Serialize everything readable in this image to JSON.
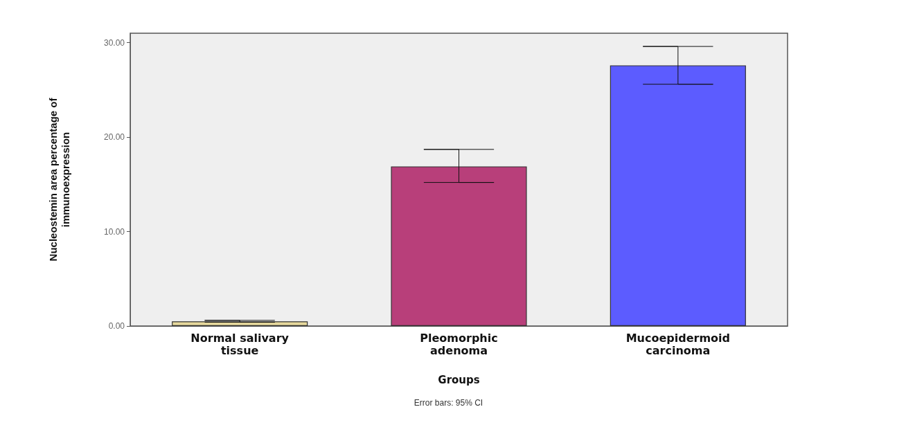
{
  "chart_data": {
    "type": "bar",
    "xlabel": "Groups",
    "ylabel": "Nucleostemin area percentage of\nimmunoexpression",
    "categories": [
      "Normal salivary\ntissue",
      "Pleomorphic\nadenoma",
      "Mucoepidermoid\ncarcinoma"
    ],
    "values": [
      0.5,
      16.9,
      27.6
    ],
    "colors": [
      "#e6d89c",
      "#b83f7a",
      "#5c5cff"
    ],
    "errors": [
      [
        0.4,
        0.6
      ],
      [
        15.2,
        18.7
      ],
      [
        25.6,
        29.6
      ]
    ],
    "ylim": [
      0,
      31
    ],
    "yticks": [
      {
        "value": 0,
        "label": "0.00"
      },
      {
        "value": 10,
        "label": "10.00"
      },
      {
        "value": 20,
        "label": "20.00"
      },
      {
        "value": 30,
        "label": "30.00"
      }
    ],
    "grid": false,
    "annotations": [
      "Error bars: 95% CI"
    ]
  }
}
